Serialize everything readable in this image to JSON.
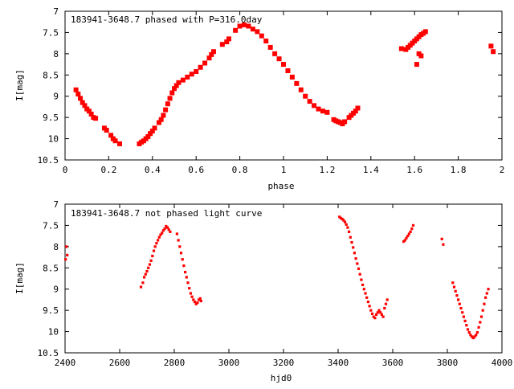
{
  "chart_data": [
    {
      "type": "scatter",
      "title": "183941-3648.7 phased with P=316.0day",
      "xlabel": "phase",
      "ylabel": "I[mag]",
      "xlim": [
        0,
        2
      ],
      "ylim": [
        10.5,
        7
      ],
      "y_inverted": true,
      "x_ticks": [
        "0",
        "0.2",
        "0.4",
        "0.6",
        "0.8",
        "1",
        "1.2",
        "1.4",
        "1.6",
        "1.8",
        "2"
      ],
      "y_ticks": [
        "7",
        "7.5",
        "8",
        "8.5",
        "9",
        "9.5",
        "10",
        "10.5"
      ],
      "grid": false,
      "marker_color": "#ff0000",
      "series": [
        {
          "x": [
            0.05,
            0.06,
            0.07,
            0.08,
            0.09,
            0.1,
            0.11,
            0.12,
            0.13,
            0.14,
            0.18,
            0.19,
            0.21,
            0.22,
            0.23,
            0.25,
            0.34,
            0.35,
            0.36,
            0.37,
            0.38,
            0.39,
            0.4,
            0.41,
            0.43,
            0.44,
            0.45,
            0.46,
            0.47,
            0.48,
            0.49,
            0.5,
            0.51,
            0.52,
            0.54,
            0.56,
            0.58,
            0.6,
            0.62,
            0.64,
            0.66,
            0.67,
            0.68,
            0.72,
            0.74,
            0.75,
            0.78,
            0.8,
            0.82,
            0.84,
            0.86,
            0.88,
            0.9,
            0.92,
            0.94,
            0.96,
            0.98,
            1.0,
            1.02,
            1.04,
            1.06,
            1.08,
            1.1,
            1.12,
            1.14,
            1.16,
            1.18,
            1.2,
            1.23,
            1.24,
            1.25,
            1.26,
            1.27,
            1.28,
            1.3,
            1.31,
            1.32,
            1.33,
            1.34,
            1.54,
            1.56,
            1.57,
            1.58,
            1.59,
            1.6,
            1.61,
            1.62,
            1.63,
            1.64,
            1.65,
            1.62,
            1.63,
            1.61,
            1.95,
            1.96
          ],
          "y": [
            8.85,
            8.95,
            9.05,
            9.15,
            9.22,
            9.3,
            9.35,
            9.42,
            9.5,
            9.52,
            9.75,
            9.8,
            9.92,
            10.0,
            10.05,
            10.12,
            10.12,
            10.08,
            10.05,
            10.0,
            9.95,
            9.88,
            9.82,
            9.75,
            9.62,
            9.55,
            9.45,
            9.32,
            9.18,
            9.05,
            8.92,
            8.82,
            8.75,
            8.68,
            8.62,
            8.55,
            8.48,
            8.42,
            8.32,
            8.22,
            8.1,
            8.02,
            7.95,
            7.78,
            7.72,
            7.65,
            7.45,
            7.35,
            7.32,
            7.35,
            7.42,
            7.48,
            7.58,
            7.7,
            7.85,
            8.0,
            8.12,
            8.25,
            8.4,
            8.55,
            8.7,
            8.85,
            9.0,
            9.12,
            9.22,
            9.3,
            9.35,
            9.38,
            9.55,
            9.58,
            9.6,
            9.62,
            9.65,
            9.6,
            9.5,
            9.45,
            9.4,
            9.35,
            9.28,
            7.88,
            7.9,
            7.85,
            7.8,
            7.75,
            7.7,
            7.65,
            7.6,
            7.55,
            7.52,
            7.48,
            8.0,
            8.05,
            8.25,
            7.82,
            7.95
          ]
        }
      ]
    },
    {
      "type": "scatter",
      "title": "183941-3648.7 not phased light curve",
      "xlabel": "hjd0",
      "ylabel": "I[mag]",
      "xlim": [
        2400,
        4000
      ],
      "ylim": [
        10.5,
        7
      ],
      "y_inverted": true,
      "x_ticks": [
        "2400",
        "2600",
        "2800",
        "3000",
        "3200",
        "3400",
        "3600",
        "3800",
        "4000"
      ],
      "y_ticks": [
        "7",
        "7.5",
        "8",
        "8.5",
        "9",
        "9.5",
        "10",
        "10.5"
      ],
      "grid": false,
      "marker_color": "#ff0000",
      "series": [
        {
          "x": [
            2402,
            2405,
            2408,
            2678,
            2685,
            2690,
            2695,
            2700,
            2705,
            2710,
            2715,
            2720,
            2725,
            2730,
            2735,
            2740,
            2745,
            2750,
            2755,
            2760,
            2765,
            2770,
            2775,
            2780,
            2785,
            2810,
            2815,
            2820,
            2825,
            2830,
            2835,
            2840,
            2845,
            2850,
            2855,
            2860,
            2865,
            2870,
            2875,
            2880,
            2885,
            2890,
            2895,
            2898,
            3405,
            3410,
            3415,
            3420,
            3425,
            3430,
            3435,
            3440,
            3445,
            3450,
            3455,
            3460,
            3465,
            3470,
            3475,
            3480,
            3485,
            3490,
            3495,
            3500,
            3505,
            3510,
            3515,
            3520,
            3525,
            3530,
            3535,
            3540,
            3545,
            3550,
            3555,
            3560,
            3565,
            3570,
            3575,
            3580,
            3640,
            3645,
            3650,
            3655,
            3660,
            3665,
            3670,
            3675,
            3780,
            3785,
            3820,
            3825,
            3830,
            3835,
            3840,
            3845,
            3850,
            3855,
            3860,
            3865,
            3870,
            3875,
            3880,
            3885,
            3890,
            3895,
            3900,
            3905,
            3910,
            3915,
            3920,
            3925,
            3930,
            3935,
            3940,
            3945,
            3950
          ],
          "y": [
            8.3,
            8.0,
            8.2,
            8.95,
            8.85,
            8.72,
            8.65,
            8.58,
            8.5,
            8.42,
            8.33,
            8.22,
            8.1,
            8.0,
            7.92,
            7.85,
            7.78,
            7.72,
            7.68,
            7.62,
            7.58,
            7.52,
            7.55,
            7.6,
            7.65,
            7.7,
            7.85,
            8.0,
            8.15,
            8.3,
            8.45,
            8.6,
            8.72,
            8.85,
            8.98,
            9.1,
            9.18,
            9.25,
            9.3,
            9.35,
            9.32,
            9.25,
            9.22,
            9.28,
            7.3,
            7.33,
            7.35,
            7.38,
            7.42,
            7.48,
            7.55,
            7.65,
            7.78,
            7.9,
            8.02,
            8.15,
            8.28,
            8.4,
            8.52,
            8.65,
            8.78,
            8.9,
            9.0,
            9.1,
            9.2,
            9.3,
            9.4,
            9.5,
            9.58,
            9.65,
            9.68,
            9.6,
            9.55,
            9.5,
            9.55,
            9.6,
            9.65,
            9.45,
            9.35,
            9.25,
            7.88,
            7.85,
            7.8,
            7.75,
            7.7,
            7.65,
            7.58,
            7.5,
            7.82,
            7.95,
            8.85,
            8.95,
            9.05,
            9.15,
            9.25,
            9.35,
            9.45,
            9.55,
            9.65,
            9.75,
            9.85,
            9.95,
            10.02,
            10.08,
            10.12,
            10.15,
            10.12,
            10.08,
            10.02,
            9.9,
            9.78,
            9.65,
            9.5,
            9.35,
            9.2,
            9.1,
            9.0
          ]
        }
      ]
    }
  ]
}
